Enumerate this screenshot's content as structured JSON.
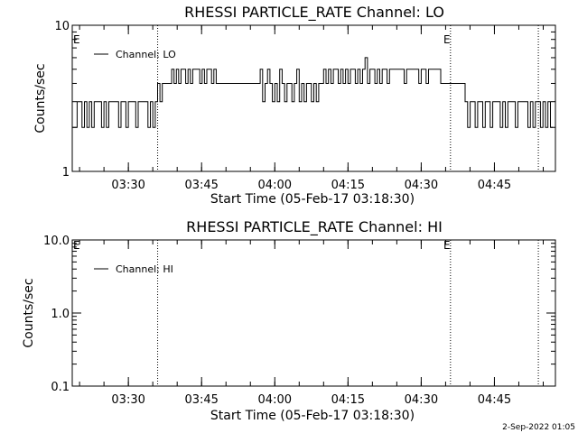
{
  "footer_date": "2-Sep-2022 01:05",
  "chart_data": [
    {
      "type": "line",
      "title": "RHESSI PARTICLE_RATE Channel: LO",
      "xlabel": "Start Time (05-Feb-17 03:18:30)",
      "ylabel": "Counts/sec",
      "y_scale": "log",
      "ylim": [
        1,
        10
      ],
      "y_ticks": [
        "1",
        "10"
      ],
      "xlim": [
        "03:18:30",
        "04:57:30"
      ],
      "x_ticks": [
        "03:30",
        "03:45",
        "04:00",
        "04:15",
        "04:30",
        "04:45"
      ],
      "legend": {
        "position": "top-left",
        "entries": [
          "Channel: LO"
        ]
      },
      "annotations": [
        {
          "type": "dotted-vline",
          "x": "03:36:00"
        },
        {
          "type": "dotted-vline",
          "x": "04:36:00",
          "label": "E"
        },
        {
          "type": "dotted-vline",
          "x": "04:54:00"
        },
        {
          "type": "text",
          "label": "E",
          "x": "03:18:30"
        }
      ],
      "series": [
        {
          "name": "Channel: LO",
          "segments": [
            {
              "x_start": "03:18:30",
              "x_end": "03:35:30",
              "levels": [
                2,
                2,
                3,
                3,
                2,
                3,
                2,
                3,
                2,
                3,
                3,
                3,
                2,
                3,
                2,
                3,
                3,
                3,
                3,
                2,
                3,
                3,
                2,
                3,
                3,
                3,
                2,
                3,
                3,
                3,
                3,
                2,
                3,
                2
              ]
            },
            {
              "x_start": "03:35:30",
              "x_end": "03:48:00",
              "levels": [
                3,
                4,
                3,
                4,
                4,
                4,
                4,
                5,
                4,
                5,
                4,
                5,
                5,
                4,
                5,
                4,
                5,
                5,
                5,
                4,
                5,
                4,
                5,
                5,
                4,
                5
              ]
            },
            {
              "x_start": "03:48:00",
              "x_end": "03:57:00",
              "levels": [
                4,
                4,
                4,
                4,
                4,
                4,
                4,
                4,
                4
              ]
            },
            {
              "x_start": "03:57:00",
              "x_end": "04:10:00",
              "levels": [
                5,
                3,
                4,
                5,
                4,
                3,
                4,
                3,
                5,
                4,
                3,
                4,
                4,
                3,
                4,
                5,
                3,
                4,
                3,
                4,
                4,
                3,
                4,
                3,
                4,
                4
              ]
            },
            {
              "x_start": "04:10:00",
              "x_end": "04:21:00",
              "levels": [
                5,
                4,
                5,
                4,
                5,
                5,
                4,
                5,
                4,
                5,
                4,
                5,
                5,
                4,
                5,
                4,
                5,
                6,
                4,
                5,
                5,
                4
              ]
            },
            {
              "x_start": "04:21:00",
              "x_end": "04:34:00",
              "levels": [
                5,
                4,
                5,
                5,
                4,
                5,
                5,
                5,
                5,
                5,
                5,
                4,
                5,
                5,
                5,
                5,
                5,
                4,
                5,
                5,
                4,
                5,
                5,
                5,
                5,
                5
              ]
            },
            {
              "x_start": "04:34:00",
              "x_end": "04:39:00",
              "levels": [
                4,
                4,
                4,
                4,
                4,
                4
              ]
            },
            {
              "x_start": "04:39:00",
              "x_end": "04:57:00",
              "levels": [
                3,
                2,
                3,
                3,
                2,
                3,
                3,
                2,
                3,
                3,
                2,
                3,
                3,
                3,
                2,
                3,
                2,
                3,
                3,
                3,
                2,
                3,
                3,
                3,
                3,
                2,
                3,
                2,
                3,
                3,
                2,
                3,
                2,
                3,
                2
              ]
            }
          ]
        }
      ]
    },
    {
      "type": "line",
      "title": "RHESSI PARTICLE_RATE Channel: HI",
      "xlabel": "Start Time (05-Feb-17 03:18:30)",
      "ylabel": "Counts/sec",
      "y_scale": "log",
      "ylim": [
        0.1,
        10
      ],
      "y_ticks": [
        "0.1",
        "1.0",
        "10.0"
      ],
      "xlim": [
        "03:18:30",
        "04:57:30"
      ],
      "x_ticks": [
        "03:30",
        "03:45",
        "04:00",
        "04:15",
        "04:30",
        "04:45"
      ],
      "legend": {
        "position": "top-left",
        "entries": [
          "Channel: HI"
        ]
      },
      "annotations": [
        {
          "type": "dotted-vline",
          "x": "03:36:00"
        },
        {
          "type": "dotted-vline",
          "x": "04:36:00",
          "label": "E"
        },
        {
          "type": "dotted-vline",
          "x": "04:54:00"
        },
        {
          "type": "text",
          "label": "E",
          "x": "03:18:30"
        }
      ],
      "series": [
        {
          "name": "Channel: HI",
          "values": []
        }
      ]
    }
  ]
}
